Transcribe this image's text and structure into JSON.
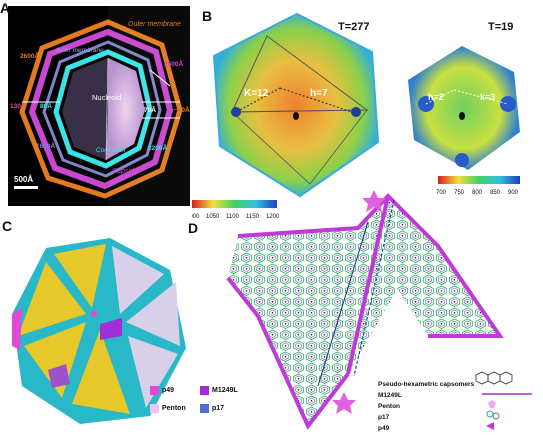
{
  "panels": {
    "a": {
      "label": "A",
      "outer_membrane": "Outer membrane",
      "inner_membrane": "Inner membrane",
      "nucleoid": "Nucleoid",
      "core_shell": "Core shell",
      "capsid": "Capsid",
      "dims": [
        "2600Å",
        "2500Å",
        "130Å",
        "80Å",
        "70Å",
        "~50Å",
        "1600Å",
        "2200Å"
      ],
      "scale_bar": "500Å"
    },
    "b": {
      "label": "B",
      "left_title": "T=277",
      "left_k": "K=12",
      "left_h": "h=7",
      "right_title": "T=19",
      "right_h": "h=2",
      "right_k": "k=3",
      "left_scale_ticks": [
        "1000",
        "1050",
        "1100",
        "1150",
        "1200"
      ],
      "right_scale_ticks": [
        "700",
        "750",
        "800",
        "850",
        "900"
      ]
    },
    "c": {
      "label": "C",
      "legend": [
        {
          "name": "p49",
          "color": "#e04bd6"
        },
        {
          "name": "M1249L",
          "color": "#a02fd8"
        },
        {
          "name": "Penton",
          "color": "#f0c3f2"
        },
        {
          "name": "p17",
          "color": "#4f6ecf"
        }
      ]
    },
    "d": {
      "label": "D",
      "legend": [
        {
          "name": "Pseudo-hexametric capsomers"
        },
        {
          "name": "M1249L"
        },
        {
          "name": "Penton"
        },
        {
          "name": "p17"
        },
        {
          "name": "p49"
        }
      ]
    }
  }
}
